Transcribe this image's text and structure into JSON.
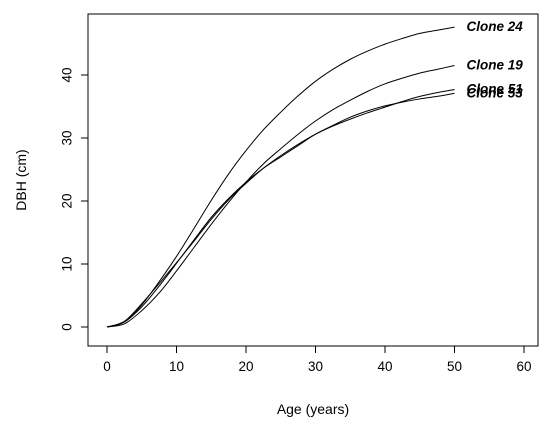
{
  "chart_data": {
    "type": "line",
    "title": "",
    "xlabel": "Age (years)",
    "ylabel": "DBH (cm)",
    "xlim": [
      0,
      60
    ],
    "ylim": [
      0,
      50
    ],
    "xticks": [
      0,
      10,
      20,
      30,
      40,
      50,
      60
    ],
    "yticks": [
      0,
      10,
      20,
      30,
      40
    ],
    "grid": false,
    "legend": "inline labels at line ends",
    "x": [
      0,
      2.5,
      5,
      7.5,
      10,
      12.5,
      15,
      17.5,
      20,
      22.5,
      25,
      27.5,
      30,
      32.5,
      35,
      37.5,
      40,
      42.5,
      45,
      47.5,
      50
    ],
    "series": [
      {
        "name": "Clone 24",
        "values": [
          0,
          0.8,
          3.5,
          7.2,
          11.2,
          15.6,
          20.1,
          24.3,
          28.0,
          31.3,
          34.1,
          36.7,
          39.0,
          40.9,
          42.5,
          43.8,
          44.9,
          45.8,
          46.6,
          47.1,
          47.6
        ]
      },
      {
        "name": "Clone 19",
        "values": [
          0,
          0.5,
          2.6,
          5.4,
          8.9,
          12.6,
          16.3,
          19.8,
          23.0,
          25.9,
          28.3,
          30.6,
          32.7,
          34.5,
          36.0,
          37.4,
          38.6,
          39.5,
          40.3,
          40.9,
          41.5
        ]
      },
      {
        "name": "Clone 51",
        "values": [
          0,
          0.9,
          3.7,
          6.9,
          10.2,
          13.6,
          17.1,
          20.2,
          22.8,
          25.2,
          27.2,
          29.0,
          30.6,
          31.9,
          33.0,
          34.0,
          34.9,
          35.8,
          36.6,
          37.2,
          37.7
        ]
      },
      {
        "name": "Clone 53",
        "values": [
          0,
          0.8,
          3.2,
          6.5,
          10.1,
          13.8,
          17.4,
          20.4,
          23.0,
          25.2,
          27.0,
          28.8,
          30.6,
          32.0,
          33.3,
          34.3,
          35.1,
          35.7,
          36.2,
          36.6,
          37.1
        ]
      }
    ]
  }
}
